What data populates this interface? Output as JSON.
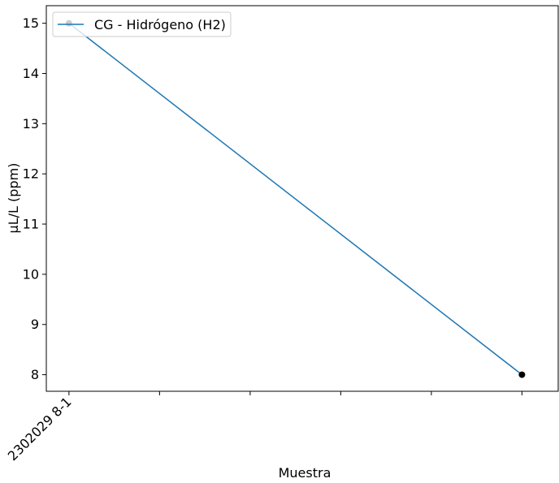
{
  "chart_data": {
    "type": "line",
    "title": "",
    "xlabel": "Muestra",
    "ylabel": "µL/L (ppm)",
    "x_tick_labels": [
      "2302029 8-1"
    ],
    "ylim": [
      7.67,
      15.35
    ],
    "y_ticks": [
      8,
      9,
      10,
      11,
      12,
      13,
      14,
      15
    ],
    "grid": false,
    "legend_position": "top-left",
    "series": [
      {
        "name": "CG - Hidrógeno (H2)",
        "color": "#1f77b4",
        "points": [
          {
            "x": 0,
            "y": 15
          },
          {
            "x": 5,
            "y": 8
          }
        ]
      }
    ]
  }
}
